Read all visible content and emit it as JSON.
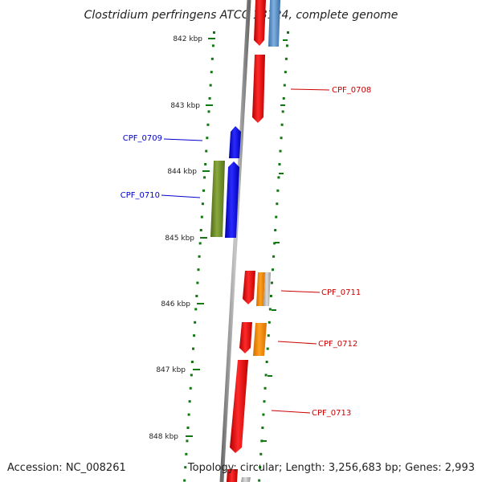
{
  "title": "Clostridium perfringens ATCC 13124, complete genome",
  "footer": {
    "accession": "Accession: NC_008261",
    "topology": "Topology: circular; Length: 3,256,683 bp; Genes: 2,993"
  },
  "ticks": [
    "842 kbp",
    "843 kbp",
    "844 kbp",
    "845 kbp",
    "846 kbp",
    "847 kbp",
    "848 kbp"
  ],
  "genes": [
    {
      "label": "CPF_0708",
      "strand": "forward",
      "color": "#cc0000"
    },
    {
      "label": "CPF_0709",
      "strand": "reverse",
      "color": "#0000cc"
    },
    {
      "label": "CPF_0710",
      "strand": "reverse",
      "color": "#0000cc"
    },
    {
      "label": "CPF_0711",
      "strand": "forward",
      "color": "#cc0000"
    },
    {
      "label": "CPF_0712",
      "strand": "forward",
      "color": "#cc0000"
    },
    {
      "label": "CPF_0713",
      "strand": "forward",
      "color": "#cc0000"
    }
  ],
  "colors": {
    "backbone": "#8a8a8a",
    "gene_red": "#ee1111",
    "gene_blue": "#1111ee",
    "gene_green": "#6b8a2a",
    "gene_orange": "#ff8c00",
    "gene_steelblue": "#4f86c0",
    "gene_gray": "#aaaaaa",
    "tick_green": "#117711"
  }
}
